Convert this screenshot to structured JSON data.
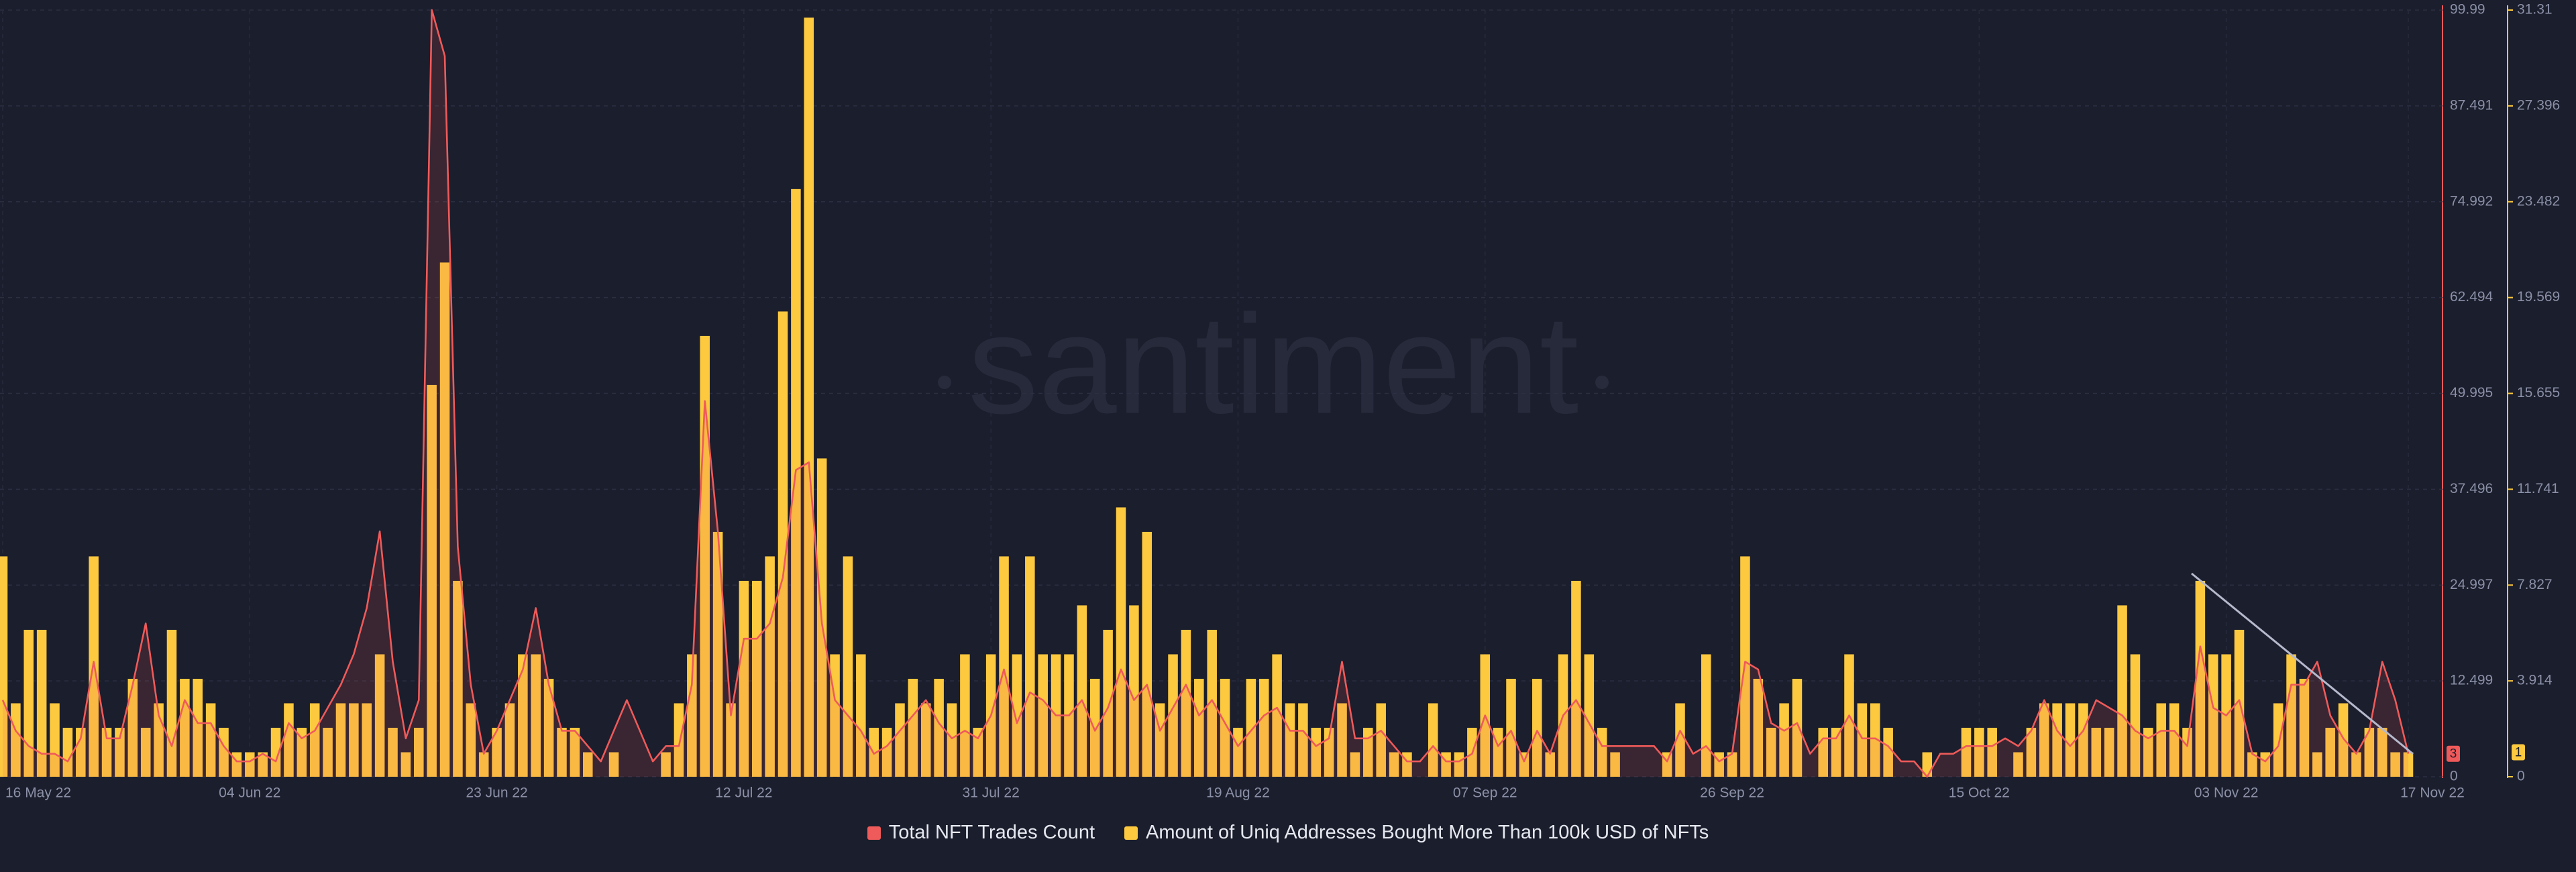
{
  "chart_data": {
    "type": "combo",
    "watermark": "santiment",
    "categories": [
      "16 May 22",
      null,
      null,
      null,
      null,
      null,
      null,
      null,
      null,
      null,
      null,
      null,
      null,
      null,
      null,
      null,
      null,
      null,
      null,
      "04 Jun 22",
      null,
      null,
      null,
      null,
      null,
      null,
      null,
      null,
      null,
      null,
      null,
      null,
      null,
      null,
      null,
      null,
      null,
      null,
      "23 Jun 22",
      null,
      null,
      null,
      null,
      null,
      null,
      null,
      null,
      null,
      null,
      null,
      null,
      null,
      null,
      null,
      null,
      null,
      null,
      "12 Jul 22",
      null,
      null,
      null,
      null,
      null,
      null,
      null,
      null,
      null,
      null,
      null,
      null,
      null,
      null,
      null,
      null,
      null,
      null,
      "31 Jul 22",
      null,
      null,
      null,
      null,
      null,
      null,
      null,
      null,
      null,
      null,
      null,
      null,
      null,
      null,
      null,
      null,
      null,
      null,
      "19 Aug 22",
      null,
      null,
      null,
      null,
      null,
      null,
      null,
      null,
      null,
      null,
      null,
      null,
      null,
      null,
      null,
      null,
      null,
      null,
      "07 Sep 22",
      null,
      null,
      null,
      null,
      null,
      null,
      null,
      null,
      null,
      null,
      null,
      null,
      null,
      null,
      null,
      null,
      null,
      null,
      "26 Sep 22",
      null,
      null,
      null,
      null,
      null,
      null,
      null,
      null,
      null,
      null,
      null,
      null,
      null,
      null,
      null,
      null,
      null,
      null,
      "15 Oct 22",
      null,
      null,
      null,
      null,
      null,
      null,
      null,
      null,
      null,
      null,
      null,
      null,
      null,
      null,
      null,
      null,
      null,
      null,
      "03 Nov 22",
      null,
      null,
      null,
      null,
      null,
      null,
      null,
      null,
      null,
      null,
      null,
      null,
      null,
      "17 Nov 22"
    ],
    "series": [
      {
        "name": "Total NFT Trades Count",
        "type": "line",
        "axis": "y",
        "color": "#ef5a5a",
        "values": [
          10,
          6,
          4,
          3,
          3,
          2,
          5,
          15,
          5,
          5,
          12,
          20,
          8,
          4,
          10,
          7,
          7,
          4,
          2,
          2,
          3,
          2,
          7,
          5,
          6,
          9,
          12,
          16,
          22,
          32,
          15,
          5,
          10,
          100,
          94,
          30,
          12,
          3,
          6,
          10,
          14,
          22,
          12,
          6,
          6,
          4,
          2,
          6,
          10,
          6,
          2,
          4,
          4,
          12,
          49,
          32,
          8,
          18,
          18,
          20,
          26,
          40,
          41,
          20,
          10,
          8,
          6,
          3,
          4,
          6,
          8,
          10,
          7,
          5,
          6,
          5,
          8,
          14,
          7,
          11,
          10,
          8,
          8,
          10,
          6,
          9,
          14,
          10,
          12,
          6,
          9,
          12,
          8,
          10,
          7,
          4,
          6,
          8,
          9,
          6,
          6,
          4,
          5,
          15,
          5,
          5,
          6,
          4,
          2,
          2,
          4,
          2,
          2,
          3,
          8,
          4,
          6,
          2,
          6,
          3,
          8,
          10,
          7,
          4,
          4,
          4,
          4,
          4,
          2,
          6,
          3,
          4,
          2,
          3,
          15,
          14,
          7,
          6,
          7,
          3,
          5,
          5,
          8,
          5,
          5,
          4,
          2,
          2,
          0,
          3,
          3,
          4,
          4,
          4,
          5,
          4,
          6,
          10,
          6,
          4,
          6,
          10,
          9,
          8,
          6,
          5,
          6,
          6,
          4,
          17,
          9,
          8,
          10,
          3,
          2,
          4,
          12,
          12,
          15,
          8,
          5,
          3,
          6,
          15,
          10,
          3
        ]
      },
      {
        "name": "Amount of Uniq Addresses Bought More Than 100k USD of NFTs",
        "type": "bar",
        "axis": "y2",
        "color": "#fcc93f",
        "values": [
          9,
          3,
          6,
          6,
          3,
          2,
          2,
          9,
          2,
          2,
          4,
          2,
          3,
          6,
          4,
          4,
          3,
          2,
          1,
          1,
          1,
          2,
          3,
          2,
          3,
          2,
          3,
          3,
          3,
          5,
          2,
          1,
          2,
          16,
          21,
          8,
          3,
          1,
          2,
          3,
          5,
          5,
          4,
          2,
          2,
          1,
          0,
          1,
          0,
          0,
          0,
          1,
          3,
          5,
          18,
          10,
          3,
          8,
          8,
          9,
          19,
          24,
          31,
          13,
          5,
          9,
          5,
          2,
          2,
          3,
          4,
          3,
          4,
          3,
          5,
          2,
          5,
          9,
          5,
          9,
          5,
          5,
          5,
          7,
          4,
          6,
          11,
          7,
          10,
          3,
          5,
          6,
          4,
          6,
          4,
          2,
          4,
          4,
          5,
          3,
          3,
          2,
          2,
          3,
          1,
          2,
          3,
          1,
          1,
          0,
          3,
          1,
          1,
          2,
          5,
          2,
          4,
          1,
          4,
          1,
          5,
          8,
          5,
          2,
          1,
          0,
          0,
          0,
          1,
          3,
          0,
          5,
          1,
          1,
          9,
          4,
          2,
          3,
          4,
          0,
          2,
          2,
          5,
          3,
          3,
          2,
          0,
          0,
          1,
          0,
          0,
          2,
          2,
          2,
          0,
          1,
          2,
          3,
          3,
          3,
          3,
          2,
          2,
          7,
          5,
          2,
          3,
          3,
          2,
          8,
          5,
          5,
          6,
          1,
          1,
          3,
          5,
          4,
          1,
          2,
          3,
          1,
          2,
          2,
          1,
          1
        ]
      }
    ],
    "ylim": [
      0,
      99.99
    ],
    "yticks": [
      0,
      12.499,
      24.997,
      37.496,
      49.995,
      62.494,
      74.992,
      87.491,
      99.99
    ],
    "y2lim": [
      0,
      31.31
    ],
    "y2ticks": [
      0,
      3.914,
      7.827,
      11.741,
      15.655,
      19.569,
      23.482,
      27.396,
      31.31
    ],
    "grid": true
  }
}
